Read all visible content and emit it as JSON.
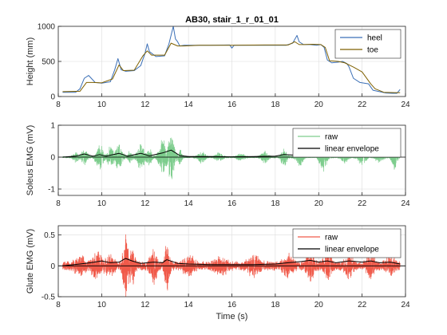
{
  "figure_title": "AB30, stair_1_r_01_01",
  "colors": {
    "heel": "#3b6fb6",
    "toe": "#7f6000",
    "raw_soleus": "#7dcd8d",
    "raw_glute": "#f05a4a",
    "envelope": "#000000",
    "grid": "#dcdcdc",
    "axis": "#262626"
  },
  "chart_data": [
    {
      "type": "line",
      "title": "AB30, stair_1_r_01_01",
      "xlabel": "",
      "ylabel": "Height (mm)",
      "xlim": [
        8,
        24
      ],
      "ylim": [
        0,
        1000
      ],
      "xticks": [
        8,
        10,
        12,
        14,
        16,
        18,
        20,
        22,
        24
      ],
      "yticks": [
        0,
        500,
        1000
      ],
      "grid": true,
      "legend_position": "top-right",
      "series": [
        {
          "name": "heel",
          "x": [
            8.2,
            8.8,
            9.0,
            9.2,
            9.4,
            9.7,
            10.0,
            10.4,
            10.6,
            10.75,
            10.9,
            11.1,
            11.5,
            11.8,
            12.0,
            12.1,
            12.2,
            12.5,
            12.9,
            13.1,
            13.3,
            13.4,
            13.5,
            13.6,
            13.8,
            14.2,
            15.0,
            15.9,
            16.0,
            16.1,
            16.5,
            17.5,
            18.5,
            18.8,
            19.0,
            19.1,
            19.3,
            19.6,
            19.9,
            20.1,
            20.25,
            20.4,
            20.6,
            20.9,
            21.1,
            21.3,
            21.4,
            21.6,
            21.9,
            22.1,
            22.3,
            22.5,
            22.8,
            23.1,
            23.4,
            23.6,
            23.75
          ],
          "y": [
            60,
            60,
            110,
            260,
            300,
            200,
            190,
            210,
            380,
            540,
            380,
            360,
            370,
            440,
            620,
            750,
            640,
            570,
            580,
            750,
            1000,
            820,
            780,
            720,
            730,
            730,
            730,
            735,
            690,
            730,
            730,
            730,
            730,
            760,
            870,
            780,
            740,
            740,
            730,
            740,
            700,
            520,
            480,
            490,
            500,
            470,
            420,
            260,
            200,
            190,
            180,
            90,
            70,
            50,
            45,
            45,
            100
          ]
        },
        {
          "name": "toe",
          "x": [
            8.2,
            9.0,
            9.3,
            9.6,
            10.0,
            10.5,
            10.8,
            11.0,
            11.5,
            11.9,
            12.1,
            12.3,
            12.9,
            13.2,
            13.5,
            13.8,
            14.5,
            16.0,
            17.5,
            18.6,
            18.9,
            19.1,
            19.3,
            19.7,
            20.1,
            20.3,
            20.5,
            20.9,
            21.2,
            21.6,
            22.0,
            22.4,
            22.6,
            23.0,
            23.5,
            23.75
          ],
          "y": [
            70,
            75,
            200,
            200,
            195,
            250,
            450,
            370,
            375,
            580,
            650,
            590,
            590,
            760,
            720,
            720,
            730,
            730,
            735,
            735,
            780,
            740,
            740,
            745,
            740,
            700,
            510,
            500,
            480,
            420,
            350,
            180,
            110,
            60,
            55,
            55
          ]
        }
      ]
    },
    {
      "type": "line",
      "title": "",
      "xlabel": "",
      "ylabel": "Soleus EMG (mV)",
      "xlim": [
        8,
        24
      ],
      "ylim": [
        -1.2,
        1
      ],
      "xticks": [
        8,
        10,
        12,
        14,
        16,
        18,
        20,
        22,
        24
      ],
      "yticks": [
        -1,
        0,
        1
      ],
      "grid": true,
      "legend_position": "top-right",
      "series": [
        {
          "name": "raw",
          "bursts": [
            {
              "t": 8.8,
              "amp": 0.15,
              "w": 0.25
            },
            {
              "t": 9.2,
              "amp": 0.3,
              "w": 0.25
            },
            {
              "t": 9.9,
              "amp": 0.45,
              "w": 0.3
            },
            {
              "t": 10.4,
              "amp": 0.35,
              "w": 0.25
            },
            {
              "t": 10.8,
              "amp": 0.45,
              "w": 0.3
            },
            {
              "t": 11.3,
              "amp": 0.2,
              "w": 0.2
            },
            {
              "t": 11.8,
              "amp": 0.45,
              "w": 0.3
            },
            {
              "t": 12.2,
              "amp": 0.3,
              "w": 0.2
            },
            {
              "t": 12.8,
              "amp": 0.6,
              "w": 0.3
            },
            {
              "t": 13.2,
              "amp": 0.85,
              "w": 0.25
            },
            {
              "t": 13.6,
              "amp": 0.25,
              "w": 0.2
            },
            {
              "t": 14.6,
              "amp": 0.2,
              "w": 0.3
            },
            {
              "t": 15.4,
              "amp": 0.15,
              "w": 0.3
            },
            {
              "t": 16.4,
              "amp": 0.12,
              "w": 0.3
            },
            {
              "t": 17.5,
              "amp": 0.2,
              "w": 0.3
            },
            {
              "t": 18.4,
              "amp": 0.3,
              "w": 0.25
            },
            {
              "t": 19.1,
              "amp": 0.3,
              "w": 0.3
            },
            {
              "t": 20.2,
              "amp": 0.45,
              "w": 0.3
            },
            {
              "t": 21.2,
              "amp": 0.2,
              "w": 0.3
            },
            {
              "t": 22.0,
              "amp": 0.3,
              "w": 0.3
            },
            {
              "t": 22.8,
              "amp": 0.2,
              "w": 0.3
            },
            {
              "t": 23.5,
              "amp": 0.65,
              "w": 0.2
            }
          ],
          "baseline_amp": 0.03
        },
        {
          "name": "linear envelope",
          "x": [
            8.2,
            8.8,
            9.2,
            9.6,
            9.9,
            10.2,
            10.8,
            11.2,
            11.8,
            12.2,
            12.8,
            13.2,
            13.6,
            14.0,
            15.0,
            16.0,
            17.0,
            18.0,
            18.4,
            19.0,
            19.5,
            20.2,
            20.6,
            21.2,
            22.0,
            22.8,
            23.5,
            23.75
          ],
          "y": [
            0.0,
            0.03,
            0.1,
            0.03,
            0.08,
            0.03,
            0.12,
            0.03,
            0.12,
            0.04,
            0.13,
            0.22,
            0.05,
            0.02,
            0.02,
            0.01,
            0.02,
            0.03,
            0.08,
            0.06,
            0.02,
            0.1,
            0.03,
            0.04,
            0.06,
            0.04,
            0.15,
            0.03
          ]
        }
      ]
    },
    {
      "type": "line",
      "title": "",
      "xlabel": "Time (s)",
      "ylabel": "Glute EMG (mV)",
      "xlim": [
        8,
        24
      ],
      "ylim": [
        -0.5,
        0.65
      ],
      "xticks": [
        8,
        10,
        12,
        14,
        16,
        18,
        20,
        22,
        24
      ],
      "yticks": [
        -0.5,
        0,
        0.5
      ],
      "grid": true,
      "legend_position": "top-right",
      "series": [
        {
          "name": "raw",
          "bursts": [
            {
              "t": 9.0,
              "amp": 0.12,
              "w": 0.4
            },
            {
              "t": 9.8,
              "amp": 0.2,
              "w": 0.4
            },
            {
              "t": 10.4,
              "amp": 0.15,
              "w": 0.3
            },
            {
              "t": 11.1,
              "amp": 0.6,
              "w": 0.2
            },
            {
              "t": 11.4,
              "amp": 0.3,
              "w": 0.2
            },
            {
              "t": 12.4,
              "amp": 0.25,
              "w": 0.3
            },
            {
              "t": 13.0,
              "amp": 0.45,
              "w": 0.2
            },
            {
              "t": 14.0,
              "amp": 0.15,
              "w": 0.4
            },
            {
              "t": 15.5,
              "amp": 0.12,
              "w": 0.5
            },
            {
              "t": 17.0,
              "amp": 0.12,
              "w": 0.5
            },
            {
              "t": 18.6,
              "amp": 0.15,
              "w": 0.4
            },
            {
              "t": 19.6,
              "amp": 0.22,
              "w": 0.3
            },
            {
              "t": 20.4,
              "amp": 0.2,
              "w": 0.3
            },
            {
              "t": 21.4,
              "amp": 0.18,
              "w": 0.3
            },
            {
              "t": 22.4,
              "amp": 0.2,
              "w": 0.3
            },
            {
              "t": 23.3,
              "amp": 0.15,
              "w": 0.3
            }
          ],
          "baseline_amp": 0.08
        },
        {
          "name": "linear envelope",
          "x": [
            8.2,
            9.0,
            9.5,
            10.0,
            10.4,
            10.8,
            11.1,
            11.4,
            11.8,
            12.4,
            12.8,
            13.0,
            13.5,
            14.0,
            15.0,
            16.0,
            17.0,
            18.0,
            18.6,
            19.2,
            19.6,
            20.0,
            20.4,
            20.8,
            21.4,
            22.0,
            22.4,
            22.8,
            23.3,
            23.75
          ],
          "y": [
            0.0,
            0.03,
            0.05,
            0.08,
            0.05,
            0.06,
            0.12,
            0.08,
            0.04,
            0.06,
            0.05,
            0.1,
            0.04,
            0.03,
            0.02,
            0.02,
            0.02,
            0.03,
            0.05,
            0.07,
            0.09,
            0.06,
            0.08,
            0.05,
            0.08,
            0.06,
            0.08,
            0.05,
            0.06,
            0.03
          ]
        }
      ]
    }
  ]
}
